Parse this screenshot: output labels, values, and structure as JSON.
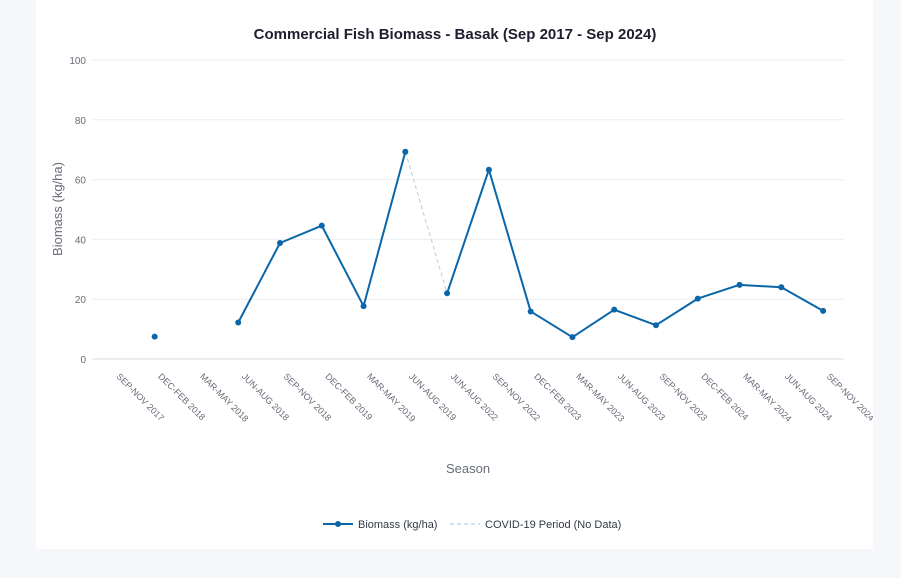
{
  "chart_data": {
    "type": "line",
    "title": "Commercial Fish Biomass - Basak (Sep 2017 - Sep 2024)",
    "xlabel": "Season",
    "ylabel": "Biomass (kg/ha)",
    "ylim": [
      0,
      100
    ],
    "yticks": [
      0,
      20,
      40,
      60,
      80,
      100
    ],
    "grid": true,
    "legend_position": "bottom",
    "categories": [
      "SEP-NOV 2017",
      "DEC-FEB 2018",
      "MAR-MAY 2018",
      "JUN-AUG 2018",
      "SEP-NOV 2018",
      "DEC-FEB 2019",
      "MAR-MAY 2019",
      "JUN-AUG 2019",
      "JUN-AUG 2022",
      "SEP-NOV 2022",
      "DEC-FEB 2023",
      "MAR-MAY 2023",
      "JUN-AUG 2023",
      "SEP-NOV 2023",
      "DEC-FEB 2024",
      "MAR-MAY 2024",
      "JUN-AUG 2024",
      "SEP-NOV 2024"
    ],
    "series": [
      {
        "name": "Biomass (kg/ha)",
        "color": "#0a66a8",
        "style": "solid-markers",
        "values": [
          null,
          7.5,
          null,
          12.2,
          38.8,
          44.6,
          17.7,
          69.3,
          22.0,
          63.3,
          15.9,
          7.3,
          16.5,
          11.3,
          20.2,
          24.8,
          24.0,
          16.1
        ]
      },
      {
        "name": "COVID-19 Period (No Data)",
        "color": "#a9d3ea",
        "style": "dashed",
        "values": [
          null,
          null,
          null,
          null,
          null,
          null,
          null,
          69.3,
          22.0,
          null,
          null,
          null,
          null,
          null,
          null,
          null,
          null,
          null
        ]
      }
    ]
  }
}
